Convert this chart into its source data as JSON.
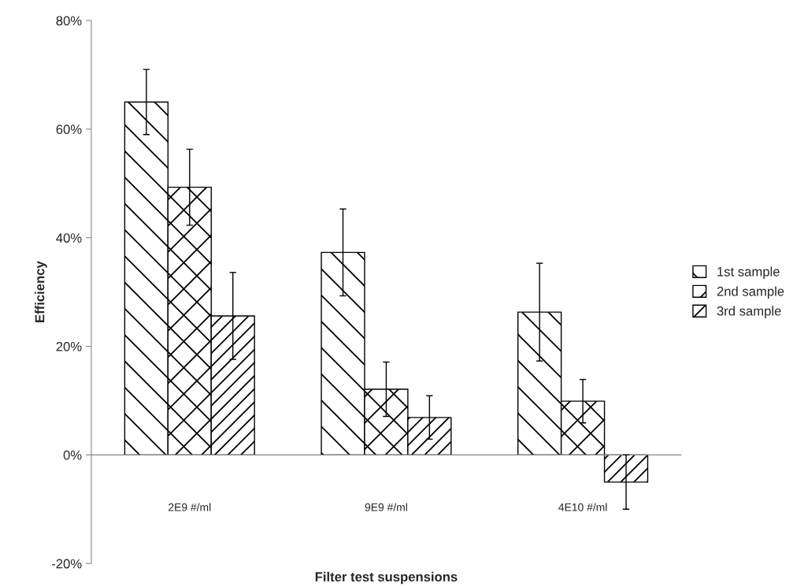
{
  "chart_data": {
    "type": "bar",
    "xlabel": "Filter test suspensions",
    "ylabel": "Efficiency",
    "categories": [
      "2E9 #/ml",
      "9E9 #/ml",
      "4E10 #/ml"
    ],
    "series": [
      {
        "name": "1st sample",
        "color": "#000000",
        "values": [
          65,
          37.3,
          26.3
        ],
        "errors": [
          6,
          8,
          9
        ]
      },
      {
        "name": "2nd sample",
        "color": "#000000",
        "values": [
          49.3,
          12.1,
          9.9
        ],
        "errors": [
          7,
          5,
          4
        ]
      },
      {
        "name": "3rd sample",
        "color": "#000000",
        "values": [
          25.6,
          6.9,
          -5.0
        ],
        "errors": [
          8,
          4,
          5
        ]
      }
    ],
    "ylim": [
      -20,
      80
    ],
    "yticks": [
      {
        "value": -20,
        "label": "-20%"
      },
      {
        "value": 0,
        "label": "0%"
      },
      {
        "value": 20,
        "label": "20%"
      },
      {
        "value": 40,
        "label": "40%"
      },
      {
        "value": 60,
        "label": "60%"
      },
      {
        "value": 80,
        "label": "80%"
      }
    ],
    "legend": "right"
  }
}
